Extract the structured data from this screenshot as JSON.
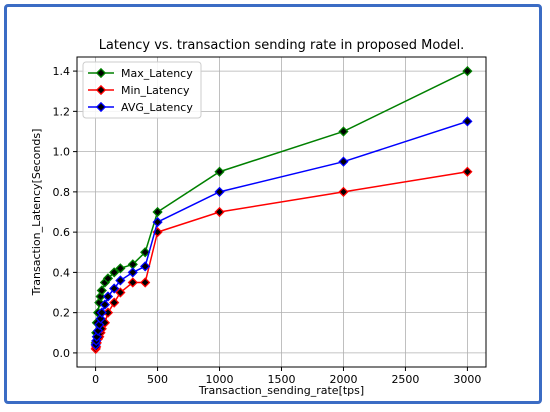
{
  "chart_data": {
    "type": "line",
    "title": "Latency vs. transaction sending rate in proposed Model.",
    "xlabel": "Transaction_sending_rate[tps]",
    "ylabel": "Transaction_Latency[Seconds]",
    "xlim": [
      -150,
      3150
    ],
    "ylim": [
      -0.07,
      1.47
    ],
    "xticks": [
      0,
      500,
      1000,
      1500,
      2000,
      2500,
      3000
    ],
    "yticks": [
      0.0,
      0.2,
      0.4,
      0.6,
      0.8,
      1.0,
      1.2,
      1.4
    ],
    "grid": true,
    "legend_position": "top-left",
    "series": [
      {
        "name": "Max_Latency",
        "color": "#008000",
        "marker": "diamond",
        "x": [
          1,
          5,
          10,
          20,
          30,
          40,
          50,
          75,
          100,
          150,
          200,
          300,
          400,
          500,
          1000,
          2000,
          3000
        ],
        "y": [
          0.05,
          0.1,
          0.15,
          0.2,
          0.25,
          0.28,
          0.31,
          0.35,
          0.37,
          0.4,
          0.42,
          0.44,
          0.5,
          0.7,
          0.9,
          1.1,
          1.4
        ]
      },
      {
        "name": "Min_Latency",
        "color": "#ff0000",
        "marker": "diamond",
        "x": [
          1,
          5,
          10,
          20,
          30,
          40,
          50,
          75,
          100,
          150,
          200,
          300,
          400,
          500,
          1000,
          2000,
          3000
        ],
        "y": [
          0.02,
          0.03,
          0.05,
          0.07,
          0.08,
          0.1,
          0.12,
          0.15,
          0.2,
          0.25,
          0.3,
          0.35,
          0.35,
          0.6,
          0.7,
          0.8,
          0.9
        ]
      },
      {
        "name": "AVG_Latency",
        "color": "#0000ff",
        "marker": "diamond",
        "x": [
          1,
          5,
          10,
          20,
          30,
          40,
          50,
          75,
          100,
          150,
          200,
          300,
          400,
          500,
          1000,
          2000,
          3000
        ],
        "y": [
          0.04,
          0.06,
          0.08,
          0.11,
          0.14,
          0.17,
          0.2,
          0.24,
          0.28,
          0.32,
          0.36,
          0.4,
          0.43,
          0.65,
          0.8,
          0.95,
          1.15
        ]
      }
    ]
  }
}
